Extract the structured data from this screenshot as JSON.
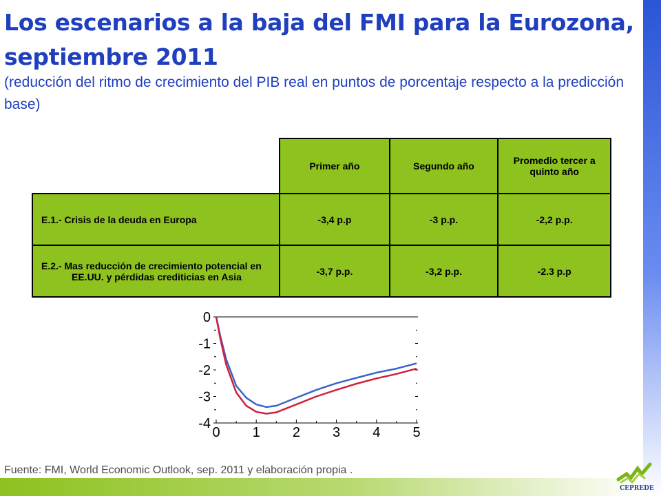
{
  "slide": {
    "title": "Los escenarios a la baja del FMI para la Eurozona, septiembre 2011",
    "subtitle": "(reducción del ritmo de crecimiento del PIB real en puntos de porcentaje respecto a la predicción base)",
    "footer": "Fuente: FMI, World Economic Outlook, sep. 2011 y elaboración propia .",
    "logo_text": "CEPREDE"
  },
  "table": {
    "headers": [
      "Primer año",
      "Segundo año",
      "Promedio tercer a quinto año"
    ],
    "rows": [
      {
        "label": "E.1.- Crisis de la deuda en Europa",
        "values": [
          "-3,4 p.p",
          "-3 p.p.",
          "-2,2 p.p."
        ]
      },
      {
        "label": "E.2.- Mas reducción de crecimiento potencial en EE.UU. y pérdidas crediticias en Asia",
        "values": [
          "-3,7 p.p.",
          "-3,2 p.p.",
          "-2.3 p.p"
        ]
      }
    ]
  },
  "colors": {
    "title": "#1f3fbf",
    "table_fill": "#8dc21f",
    "series_blue": "#3a64c8",
    "series_red": "#d0203a",
    "side_bar": "#2b55d6"
  },
  "chart_data": {
    "type": "line",
    "title": "",
    "xlabel": "",
    "ylabel": "",
    "xlim": [
      0,
      5
    ],
    "ylim": [
      -4,
      0
    ],
    "x_ticks": [
      "0",
      "1",
      "2",
      "3",
      "4",
      "5"
    ],
    "y_ticks": [
      "0",
      "-1",
      "-2",
      "-3",
      "-4"
    ],
    "grid": false,
    "series": [
      {
        "color": "#3a64c8",
        "x": [
          0,
          0.1,
          0.25,
          0.5,
          0.75,
          1.0,
          1.25,
          1.5,
          2.0,
          2.5,
          3.0,
          3.5,
          4.0,
          4.5,
          5.0
        ],
        "y": [
          0,
          -0.7,
          -1.6,
          -2.6,
          -3.05,
          -3.3,
          -3.4,
          -3.35,
          -3.05,
          -2.75,
          -2.5,
          -2.3,
          -2.1,
          -1.95,
          -1.75
        ]
      },
      {
        "color": "#d0203a",
        "x": [
          0,
          0.1,
          0.25,
          0.5,
          0.75,
          1.0,
          1.25,
          1.5,
          2.0,
          2.5,
          3.0,
          3.5,
          4.0,
          4.5,
          5.0
        ],
        "y": [
          0,
          -0.8,
          -1.8,
          -2.85,
          -3.35,
          -3.58,
          -3.65,
          -3.6,
          -3.3,
          -3.0,
          -2.75,
          -2.52,
          -2.32,
          -2.15,
          -1.95
        ]
      }
    ]
  }
}
